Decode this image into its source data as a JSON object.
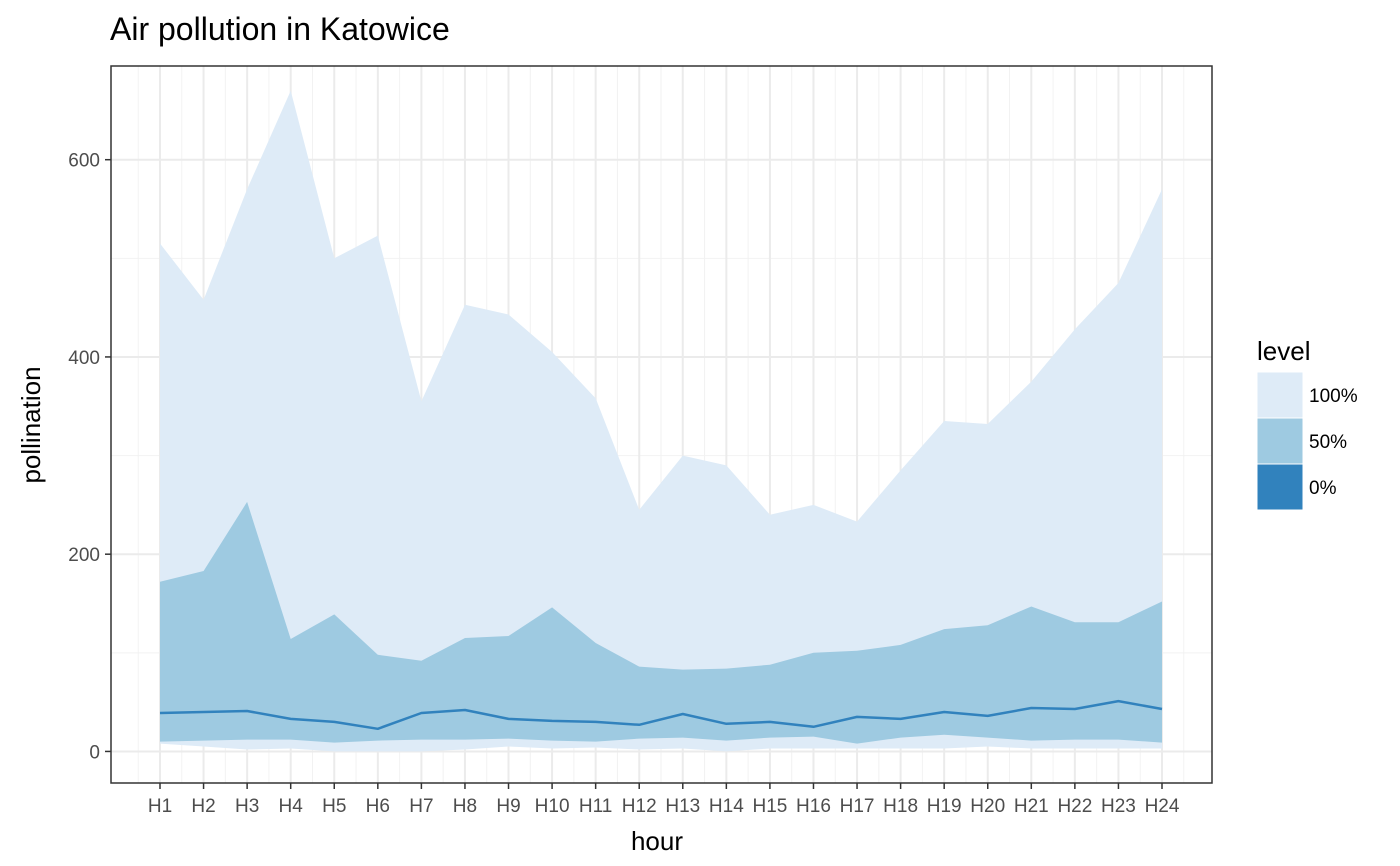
{
  "chart_data": {
    "type": "area",
    "title": "Air pollution in Katowice",
    "xlabel": "hour",
    "ylabel": "pollination",
    "categories": [
      "H1",
      "H2",
      "H3",
      "H4",
      "H5",
      "H6",
      "H7",
      "H8",
      "H9",
      "H10",
      "H11",
      "H12",
      "H13",
      "H14",
      "H15",
      "H16",
      "H17",
      "H18",
      "H19",
      "H20",
      "H21",
      "H22",
      "H23",
      "H24"
    ],
    "ylim": [
      -32,
      695
    ],
    "yticks": [
      0,
      200,
      400,
      600
    ],
    "ytick_labels": [
      "0",
      "200",
      "400",
      "600"
    ],
    "grid": true,
    "legend": {
      "title": "level",
      "position": "right",
      "entries": [
        {
          "label": "100%",
          "color": "#deebf7"
        },
        {
          "label": "50%",
          "color": "#9ecae1"
        },
        {
          "label": "0%",
          "color": "#3182bd"
        }
      ]
    },
    "bands": [
      {
        "level": "100%",
        "color": "#deebf7",
        "lower": [
          8,
          5,
          2,
          3,
          0,
          0,
          0,
          2,
          5,
          3,
          4,
          2,
          3,
          0,
          3,
          3,
          3,
          3,
          3,
          5,
          3,
          3,
          3,
          3
        ],
        "upper": [
          515,
          458,
          570,
          670,
          500,
          523,
          355,
          453,
          443,
          405,
          358,
          245,
          300,
          290,
          240,
          250,
          233,
          285,
          335,
          332,
          375,
          428,
          475,
          570
        ]
      },
      {
        "level": "50%",
        "color": "#9ecae1",
        "lower": [
          10,
          11,
          12,
          12,
          9,
          11,
          12,
          12,
          13,
          11,
          10,
          13,
          14,
          11,
          14,
          15,
          8,
          14,
          17,
          14,
          11,
          12,
          12,
          9
        ],
        "upper": [
          172,
          183,
          253,
          114,
          139,
          98,
          92,
          115,
          117,
          146,
          110,
          86,
          83,
          84,
          88,
          100,
          102,
          108,
          124,
          128,
          147,
          131,
          131,
          152
        ]
      }
    ],
    "series": [
      {
        "name": "0%",
        "color": "#3182bd",
        "values": [
          39,
          40,
          41,
          33,
          30,
          23,
          39,
          42,
          33,
          31,
          30,
          27,
          38,
          28,
          30,
          25,
          35,
          33,
          40,
          36,
          44,
          43,
          51,
          43
        ]
      }
    ]
  }
}
